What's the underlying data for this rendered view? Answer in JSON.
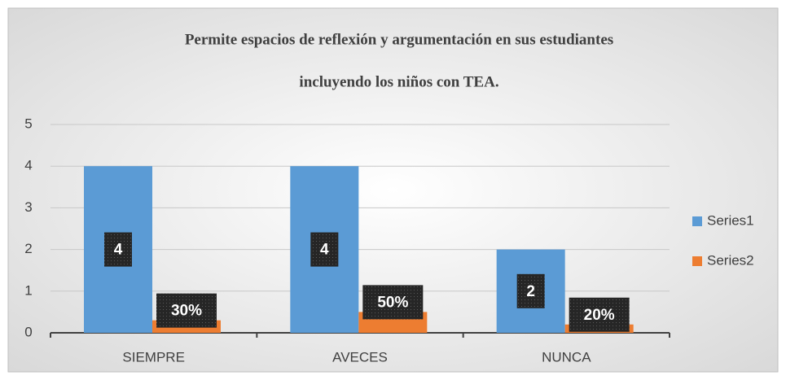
{
  "chart_data": {
    "type": "bar",
    "title": [
      "Permite espacios de reflexión y argumentación en sus estudiantes",
      "incluyendo los niños con TEA."
    ],
    "categories": [
      "SIEMPRE",
      "AVECES",
      "NUNCA"
    ],
    "series": [
      {
        "name": "Series1",
        "color": "#5b9bd5",
        "values": [
          4,
          4,
          2
        ]
      },
      {
        "name": "Series2",
        "color": "#ed7d31",
        "values": [
          0.3,
          0.5,
          0.2
        ],
        "value_labels": [
          "30%",
          "50%",
          "20%"
        ]
      }
    ],
    "ylim": [
      0,
      5
    ],
    "yticks": [
      0,
      1,
      2,
      3,
      4,
      5
    ],
    "grid": true,
    "legend": "right"
  }
}
